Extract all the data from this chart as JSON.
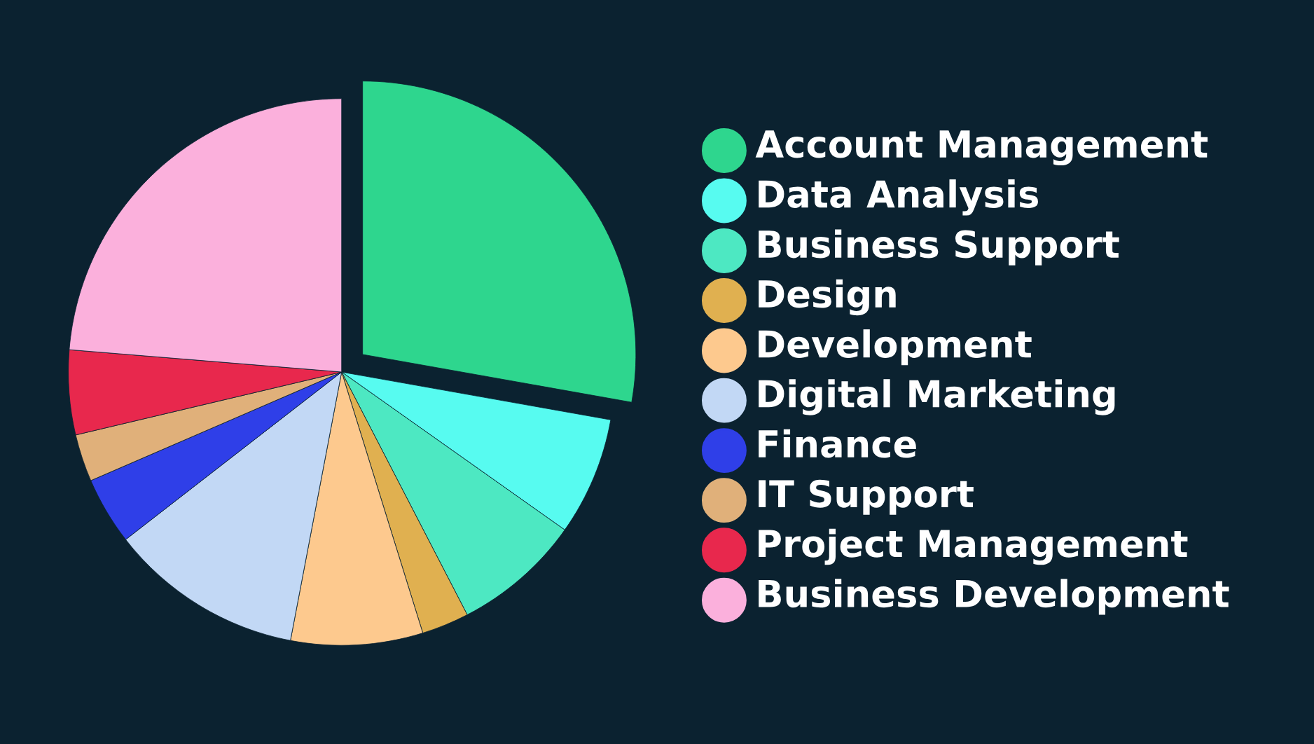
{
  "chart_data": {
    "type": "pie",
    "categories": [
      "Account Management",
      "Data Analysis",
      "Business Support",
      "Design",
      "Development",
      "Digital Marketing",
      "Finance",
      "IT Support",
      "Project Management",
      "Business Development"
    ],
    "values": [
      27.8,
      7,
      7.6,
      2.8,
      7.8,
      11.5,
      4,
      2.8,
      5,
      23.7
    ],
    "colors": [
      "#2ed68e",
      "#57fbf0",
      "#4de8c2",
      "#e0b050",
      "#fdc98e",
      "#c2d8f5",
      "#2f3fe8",
      "#e0b07a",
      "#e8284d",
      "#fbb0dc"
    ],
    "legend": "right"
  }
}
